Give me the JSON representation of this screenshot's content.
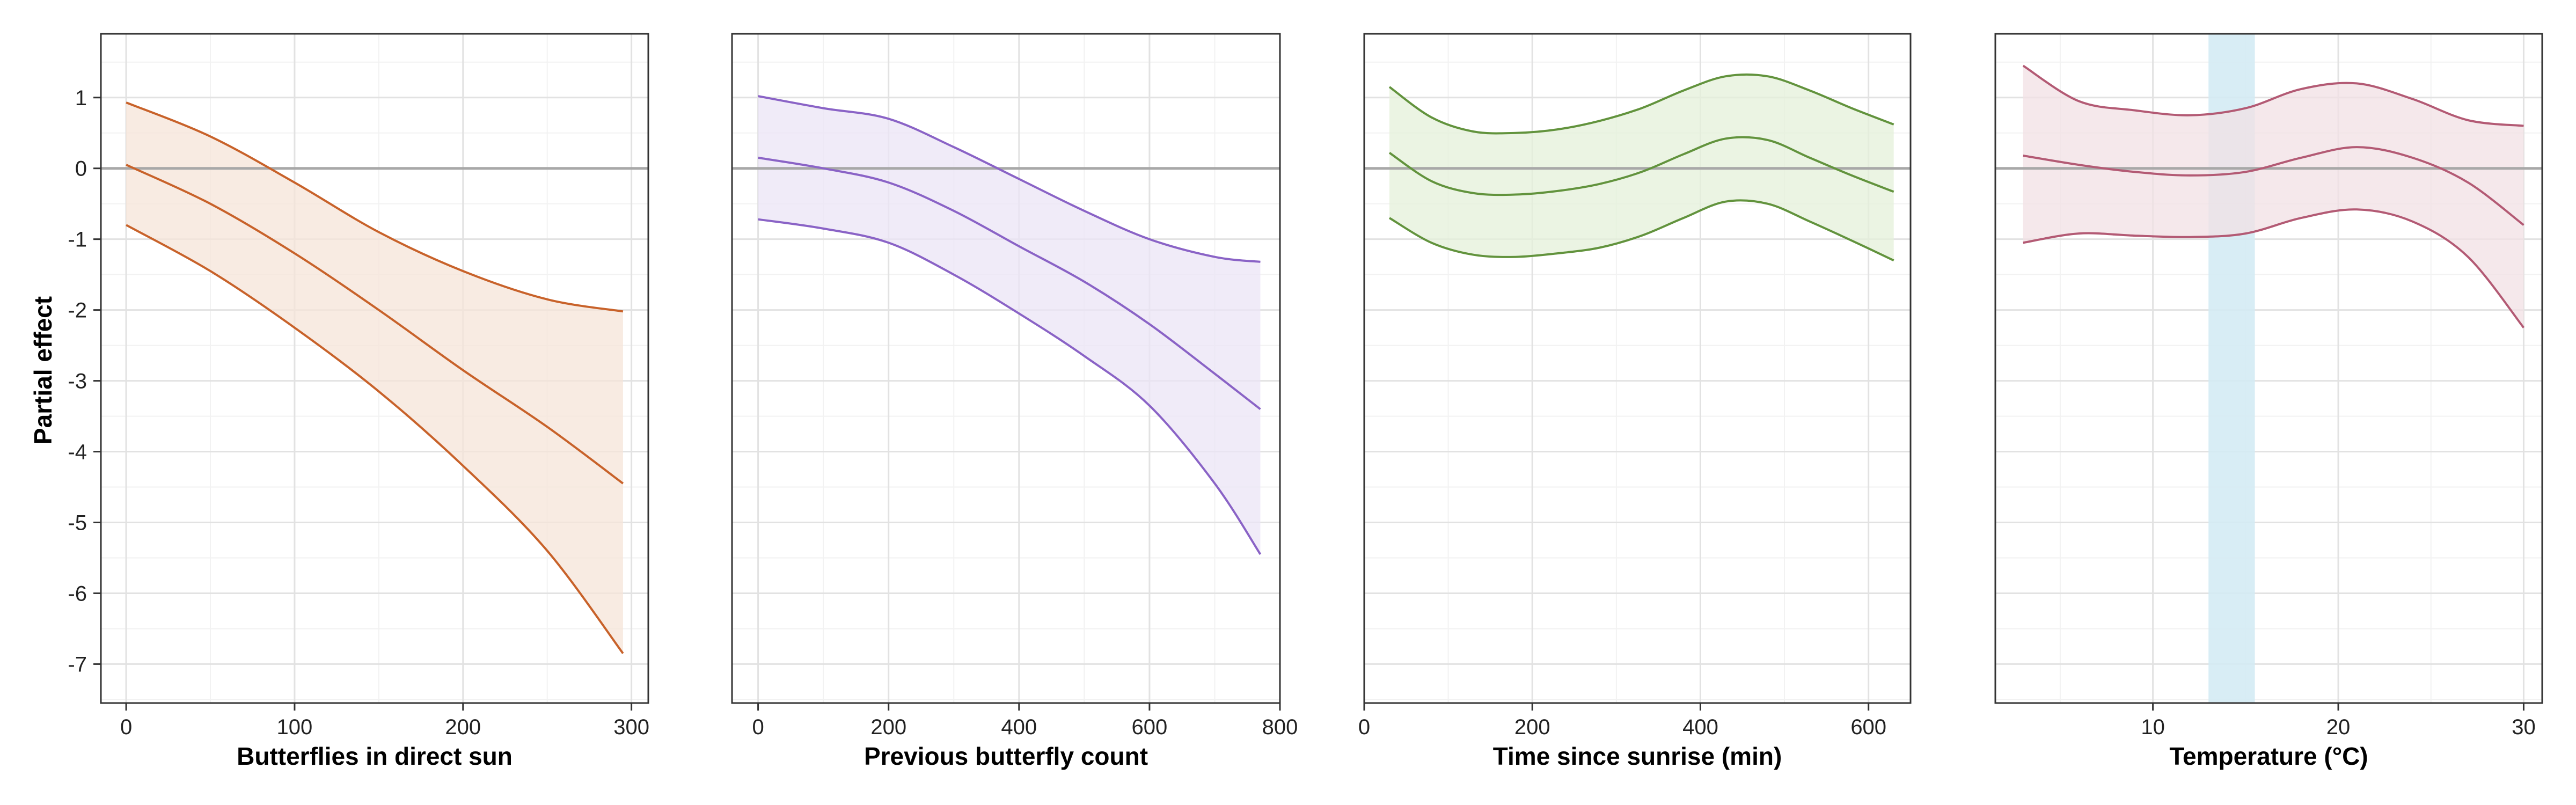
{
  "y_axis": {
    "label": "Partial effect",
    "ticks": [
      1,
      0,
      -1,
      -2,
      -3,
      -4,
      -5,
      -6,
      -7
    ],
    "tick_labels": [
      "1",
      "0",
      "-1",
      "-2",
      "-3",
      "-4",
      "-5",
      "-6",
      "-7"
    ]
  },
  "chart_data": [
    {
      "type": "line",
      "xlabel": "Butterflies in direct sun",
      "ylabel": "Partial effect",
      "xlim": [
        -15,
        310
      ],
      "ylim": [
        -7.55,
        1.9
      ],
      "x_ticks": [
        0,
        100,
        200,
        300
      ],
      "x_tick_labels": [
        "0",
        "100",
        "200",
        "300"
      ],
      "color": "#c8622a",
      "fill_color": "#f6e4d8",
      "grid": true,
      "x": [
        0,
        50,
        100,
        150,
        200,
        250,
        295
      ],
      "fit": [
        0.05,
        -0.5,
        -1.2,
        -2.0,
        -2.85,
        -3.65,
        -4.45
      ],
      "upper": [
        0.93,
        0.45,
        -0.2,
        -0.9,
        -1.45,
        -1.85,
        -2.02
      ],
      "lower": [
        -0.8,
        -1.45,
        -2.25,
        -3.15,
        -4.2,
        -5.4,
        -6.85
      ]
    },
    {
      "type": "line",
      "xlabel": "Previous butterfly count",
      "ylabel": "Partial effect",
      "xlim": [
        -40,
        800
      ],
      "ylim": [
        -7.55,
        1.9
      ],
      "x_ticks": [
        0,
        200,
        400,
        600,
        800
      ],
      "x_tick_labels": [
        "0",
        "200",
        "400",
        "600",
        "800"
      ],
      "color": "#8a63c6",
      "fill_color": "#ebe4f6",
      "grid": true,
      "x": [
        0,
        100,
        200,
        300,
        400,
        500,
        600,
        700,
        770
      ],
      "fit": [
        0.15,
        0.0,
        -0.2,
        -0.6,
        -1.1,
        -1.6,
        -2.2,
        -2.9,
        -3.4
      ],
      "upper": [
        1.02,
        0.85,
        0.7,
        0.3,
        -0.15,
        -0.6,
        -1.0,
        -1.25,
        -1.32
      ],
      "lower": [
        -0.72,
        -0.85,
        -1.05,
        -1.5,
        -2.05,
        -2.65,
        -3.35,
        -4.45,
        -5.45
      ]
    },
    {
      "type": "line",
      "xlabel": "Time since sunrise (min)",
      "ylabel": "Partial effect",
      "xlim": [
        0,
        650
      ],
      "ylim": [
        -7.55,
        1.9
      ],
      "x_ticks": [
        0,
        200,
        400,
        600
      ],
      "x_tick_labels": [
        "0",
        "200",
        "400",
        "600"
      ],
      "color": "#62933d",
      "fill_color": "#e4f0da",
      "grid": true,
      "x": [
        30,
        80,
        130,
        180,
        230,
        280,
        330,
        380,
        430,
        480,
        530,
        580,
        630
      ],
      "fit": [
        0.22,
        -0.18,
        -0.35,
        -0.37,
        -0.32,
        -0.22,
        -0.05,
        0.2,
        0.42,
        0.4,
        0.15,
        -0.1,
        -0.33
      ],
      "upper": [
        1.15,
        0.72,
        0.52,
        0.5,
        0.55,
        0.67,
        0.85,
        1.1,
        1.3,
        1.3,
        1.1,
        0.85,
        0.62
      ],
      "lower": [
        -0.7,
        -1.05,
        -1.22,
        -1.25,
        -1.2,
        -1.12,
        -0.95,
        -0.7,
        -0.47,
        -0.5,
        -0.75,
        -1.02,
        -1.3
      ]
    },
    {
      "type": "line",
      "xlabel": "Temperature (°C)",
      "ylabel": "Partial effect",
      "xlim": [
        1.5,
        31
      ],
      "ylim": [
        -7.55,
        1.9
      ],
      "x_ticks": [
        10,
        20,
        30
      ],
      "x_tick_labels": [
        "10",
        "20",
        "30"
      ],
      "color": "#b35a74",
      "fill_color": "#f2e0e4",
      "grid": true,
      "x": [
        3,
        6,
        9,
        12,
        15,
        18,
        21,
        24,
        27,
        30
      ],
      "fit": [
        0.18,
        0.05,
        -0.05,
        -0.1,
        -0.05,
        0.15,
        0.3,
        0.15,
        -0.2,
        -0.8
      ],
      "upper": [
        1.45,
        0.95,
        0.82,
        0.75,
        0.85,
        1.12,
        1.2,
        0.98,
        0.68,
        0.6
      ],
      "lower": [
        -1.05,
        -0.92,
        -0.95,
        -0.97,
        -0.92,
        -0.7,
        -0.58,
        -0.75,
        -1.25,
        -2.25
      ],
      "shaded_band": {
        "x_range": [
          13,
          15.5
        ],
        "color": "#d4ebf4"
      }
    }
  ]
}
